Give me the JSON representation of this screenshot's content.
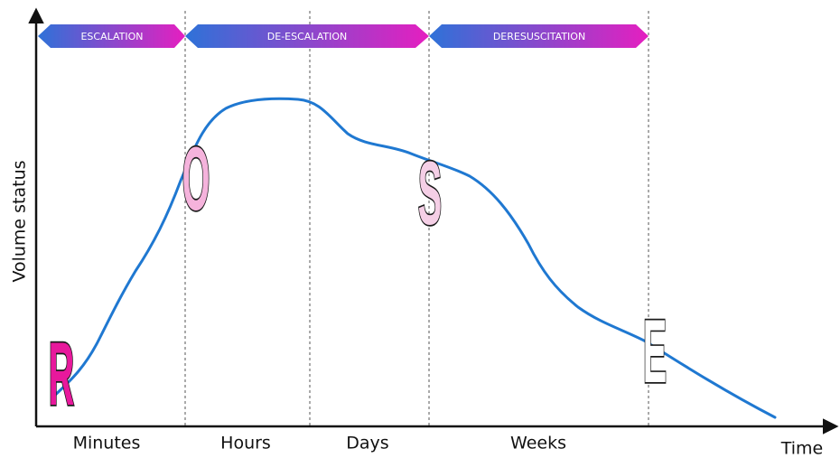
{
  "phases": [
    "ESCALATION",
    "DE-ESCALATION",
    "DERESUSCITATION"
  ],
  "time_labels": [
    "Minutes",
    "Hours",
    "Days",
    "Weeks"
  ],
  "letters": [
    "R",
    "O",
    "S",
    "E"
  ],
  "axes": {
    "y_label": "Volume status",
    "x_label": "Time"
  }
}
